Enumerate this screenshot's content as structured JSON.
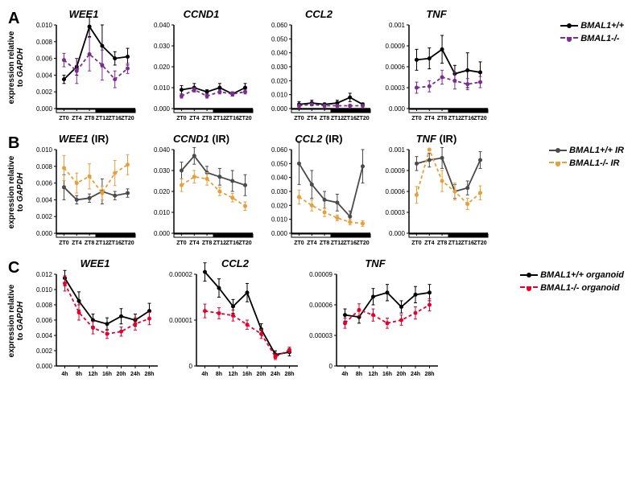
{
  "panel_labels": {
    "A": "A",
    "B": "B",
    "C": "C"
  },
  "yaxis_label_line1": "expression relative",
  "yaxis_label_line2": "to ",
  "yaxis_label_gene": "GAPDH",
  "x_labels_zt": [
    "ZT0",
    "ZT4",
    "ZT8",
    "ZT12",
    "ZT16",
    "ZT20"
  ],
  "x_labels_h": [
    "4h",
    "8h",
    "12h",
    "16h",
    "20h",
    "24h",
    "28h"
  ],
  "legends": {
    "A": [
      {
        "label": "BMAL1+/+",
        "color": "#000000",
        "dash": "solid"
      },
      {
        "label": "BMAL1-/-",
        "color": "#7b2d8e",
        "dash": "dashed"
      }
    ],
    "B": [
      {
        "label": "BMAL1+/+ IR",
        "color": "#4a4a4a",
        "dash": "solid"
      },
      {
        "label": "BMAL1-/- IR",
        "color": "#e69f3c",
        "dash": "dashed"
      }
    ],
    "C": [
      {
        "label": "BMAL1+/+ organoid",
        "color": "#000000",
        "dash": "solid"
      },
      {
        "label": "BMAL1-/- organoid",
        "color": "#e4002b",
        "dash": "dashed"
      }
    ]
  },
  "colors": {
    "axis": "#000000",
    "bg": "#ffffff",
    "errbar": "#000000"
  },
  "charts": {
    "A": [
      {
        "title": "WEE1",
        "ymax": 0.01,
        "yticks": [
          0.0,
          0.002,
          0.004,
          0.006,
          0.008,
          0.01
        ],
        "series": [
          {
            "color": "#000000",
            "dash": "solid",
            "y": [
              0.0035,
              0.005,
              0.0098,
              0.0075,
              0.006,
              0.0062
            ],
            "err": [
              0.0005,
              0.001,
              0.0012,
              0.0025,
              0.0008,
              0.001
            ]
          },
          {
            "color": "#7b2d8e",
            "dash": "dashed",
            "y": [
              0.0058,
              0.0045,
              0.0065,
              0.0052,
              0.0035,
              0.0048
            ],
            "err": [
              0.0008,
              0.0015,
              0.002,
              0.0018,
              0.001,
              0.0006
            ]
          }
        ]
      },
      {
        "title": "CCND1",
        "ymax": 0.04,
        "yticks": [
          0.0,
          0.01,
          0.02,
          0.03,
          0.04
        ],
        "series": [
          {
            "color": "#000000",
            "dash": "solid",
            "y": [
              0.009,
              0.01,
              0.008,
              0.01,
              0.007,
              0.01
            ],
            "err": [
              0.002,
              0.002,
              0.001,
              0.002,
              0.001,
              0.002
            ]
          },
          {
            "color": "#7b2d8e",
            "dash": "dashed",
            "y": [
              0.006,
              0.009,
              0.006,
              0.008,
              0.007,
              0.008
            ],
            "err": [
              0.001,
              0.001,
              0.001,
              0.001,
              0.001,
              0.001
            ]
          }
        ]
      },
      {
        "title": "CCL2",
        "ymax": 0.06,
        "yticks": [
          0.0,
          0.01,
          0.02,
          0.03,
          0.04,
          0.05,
          0.06
        ],
        "series": [
          {
            "color": "#000000",
            "dash": "solid",
            "y": [
              0.003,
              0.004,
              0.003,
              0.004,
              0.008,
              0.003
            ],
            "err": [
              0.002,
              0.002,
              0.001,
              0.002,
              0.003,
              0.001
            ]
          },
          {
            "color": "#7b2d8e",
            "dash": "dashed",
            "y": [
              0.002,
              0.003,
              0.002,
              0.002,
              0.002,
              0.002
            ],
            "err": [
              0.001,
              0.001,
              0.001,
              0.001,
              0.001,
              0.001
            ]
          }
        ]
      },
      {
        "title": "TNF",
        "ymax": 0.0012,
        "yticks": [
          0.0,
          0.0003,
          0.0006,
          0.0009,
          0.0012
        ],
        "series": [
          {
            "color": "#000000",
            "dash": "solid",
            "y": [
              0.0007,
              0.00072,
              0.00085,
              0.0005,
              0.00055,
              0.00052
            ],
            "err": [
              0.00015,
              0.00015,
              0.0002,
              0.00012,
              0.00025,
              0.00015
            ]
          },
          {
            "color": "#7b2d8e",
            "dash": "dashed",
            "y": [
              0.0003,
              0.00032,
              0.00045,
              0.0004,
              0.00035,
              0.00038
            ],
            "err": [
              8e-05,
              8e-05,
              0.0001,
              0.00012,
              8e-05,
              8e-05
            ]
          }
        ]
      }
    ],
    "B": [
      {
        "title": "WEE1 (IR)",
        "ymax": 0.01,
        "yticks": [
          0.0,
          0.002,
          0.004,
          0.006,
          0.008,
          0.01
        ],
        "series": [
          {
            "color": "#4a4a4a",
            "dash": "solid",
            "y": [
              0.0055,
              0.004,
              0.0042,
              0.005,
              0.0045,
              0.0048
            ],
            "err": [
              0.0015,
              0.0005,
              0.0005,
              0.0015,
              0.0005,
              0.0005
            ]
          },
          {
            "color": "#e69f3c",
            "dash": "dashed",
            "y": [
              0.0078,
              0.006,
              0.0068,
              0.0048,
              0.0072,
              0.0082
            ],
            "err": [
              0.0015,
              0.0012,
              0.0015,
              0.0008,
              0.0015,
              0.0012
            ]
          }
        ]
      },
      {
        "title": "CCND1 (IR)",
        "ymax": 0.04,
        "yticks": [
          0.0,
          0.01,
          0.02,
          0.03,
          0.04
        ],
        "series": [
          {
            "color": "#4a4a4a",
            "dash": "solid",
            "y": [
              0.03,
              0.037,
              0.029,
              0.027,
              0.025,
              0.023
            ],
            "err": [
              0.004,
              0.004,
              0.003,
              0.004,
              0.005,
              0.005
            ]
          },
          {
            "color": "#e69f3c",
            "dash": "dashed",
            "y": [
              0.023,
              0.027,
              0.026,
              0.02,
              0.017,
              0.013
            ],
            "err": [
              0.003,
              0.003,
              0.003,
              0.002,
              0.002,
              0.002
            ]
          }
        ]
      },
      {
        "title": "CCL2 (IR)",
        "ymax": 0.06,
        "yticks": [
          0.0,
          0.01,
          0.02,
          0.03,
          0.04,
          0.05,
          0.06
        ],
        "series": [
          {
            "color": "#4a4a4a",
            "dash": "solid",
            "y": [
              0.05,
              0.035,
              0.024,
              0.022,
              0.012,
              0.048
            ],
            "err": [
              0.015,
              0.01,
              0.006,
              0.006,
              0.004,
              0.012
            ]
          },
          {
            "color": "#e69f3c",
            "dash": "dashed",
            "y": [
              0.026,
              0.02,
              0.015,
              0.011,
              0.008,
              0.007
            ],
            "err": [
              0.005,
              0.004,
              0.003,
              0.002,
              0.002,
              0.002
            ]
          }
        ]
      },
      {
        "title": "TNF (IR)",
        "ymax": 0.0012,
        "yticks": [
          0.0,
          0.0003,
          0.0006,
          0.0009,
          0.0012
        ],
        "series": [
          {
            "color": "#4a4a4a",
            "dash": "solid",
            "y": [
              0.001,
              0.00105,
              0.00108,
              0.0006,
              0.00065,
              0.00105
            ],
            "err": [
              0.0001,
              0.0001,
              0.00015,
              0.0001,
              0.0001,
              0.00012
            ]
          },
          {
            "color": "#e69f3c",
            "dash": "dashed",
            "y": [
              0.00055,
              0.0012,
              0.00075,
              0.0006,
              0.00042,
              0.00058
            ],
            "err": [
              0.00012,
              0.0,
              0.00015,
              0.00012,
              8e-05,
              0.0001
            ]
          }
        ]
      }
    ],
    "C": [
      {
        "title": "WEE1",
        "ymax": 0.012,
        "yticks": [
          0.0,
          0.002,
          0.004,
          0.006,
          0.008,
          0.01,
          0.012
        ],
        "series": [
          {
            "color": "#000000",
            "dash": "solid",
            "y": [
              0.0115,
              0.0085,
              0.006,
              0.0055,
              0.0065,
              0.006,
              0.0072
            ],
            "err": [
              0.001,
              0.0012,
              0.0008,
              0.0008,
              0.001,
              0.0008,
              0.001
            ]
          },
          {
            "color": "#e4002b",
            "dash": "dashed",
            "y": [
              0.0108,
              0.007,
              0.005,
              0.0042,
              0.0045,
              0.0055,
              0.0062
            ],
            "err": [
              0.001,
              0.001,
              0.0008,
              0.0006,
              0.0006,
              0.0008,
              0.0008
            ]
          }
        ]
      },
      {
        "title": "CCL2",
        "ymax": 2e-05,
        "yticks": [
          0.0,
          1e-05,
          2e-05
        ],
        "ytick_labels": [
          "0",
          "0.00001",
          "0.00002"
        ],
        "series": [
          {
            "color": "#000000",
            "dash": "solid",
            "y": [
              2.05e-05,
              1.7e-05,
              1.3e-05,
              1.6e-05,
              8e-06,
              2.5e-06,
              3e-06
            ],
            "err": [
              2e-06,
              2e-06,
              1.5e-06,
              2e-06,
              1.2e-06,
              8e-07,
              8e-07
            ]
          },
          {
            "color": "#e4002b",
            "dash": "dashed",
            "y": [
              1.2e-05,
              1.15e-05,
              1.1e-05,
              9e-06,
              7e-06,
              2e-06,
              3.5e-06
            ],
            "err": [
              1.5e-06,
              1.2e-06,
              1.2e-06,
              1e-06,
              1e-06,
              6e-07,
              6e-07
            ]
          }
        ]
      },
      {
        "title": "TNF",
        "ymax": 9e-05,
        "yticks": [
          0.0,
          3e-05,
          6e-05,
          9e-05
        ],
        "ytick_labels": [
          "0",
          "0.00003",
          "0.00006",
          "0.00009"
        ],
        "series": [
          {
            "color": "#000000",
            "dash": "solid",
            "y": [
              5e-05,
              4.8e-05,
              6.8e-05,
              7.2e-05,
              5.8e-05,
              7e-05,
              7.2e-05
            ],
            "err": [
              6e-06,
              6e-06,
              8e-06,
              8e-06,
              6e-06,
              8e-06,
              8e-06
            ]
          },
          {
            "color": "#e4002b",
            "dash": "dashed",
            "y": [
              4.2e-05,
              5.5e-05,
              5e-05,
              4.2e-05,
              4.5e-05,
              5.2e-05,
              6e-05
            ],
            "err": [
              5e-06,
              6e-06,
              6e-06,
              5e-06,
              5e-06,
              6e-06,
              6e-06
            ]
          }
        ]
      }
    ]
  }
}
